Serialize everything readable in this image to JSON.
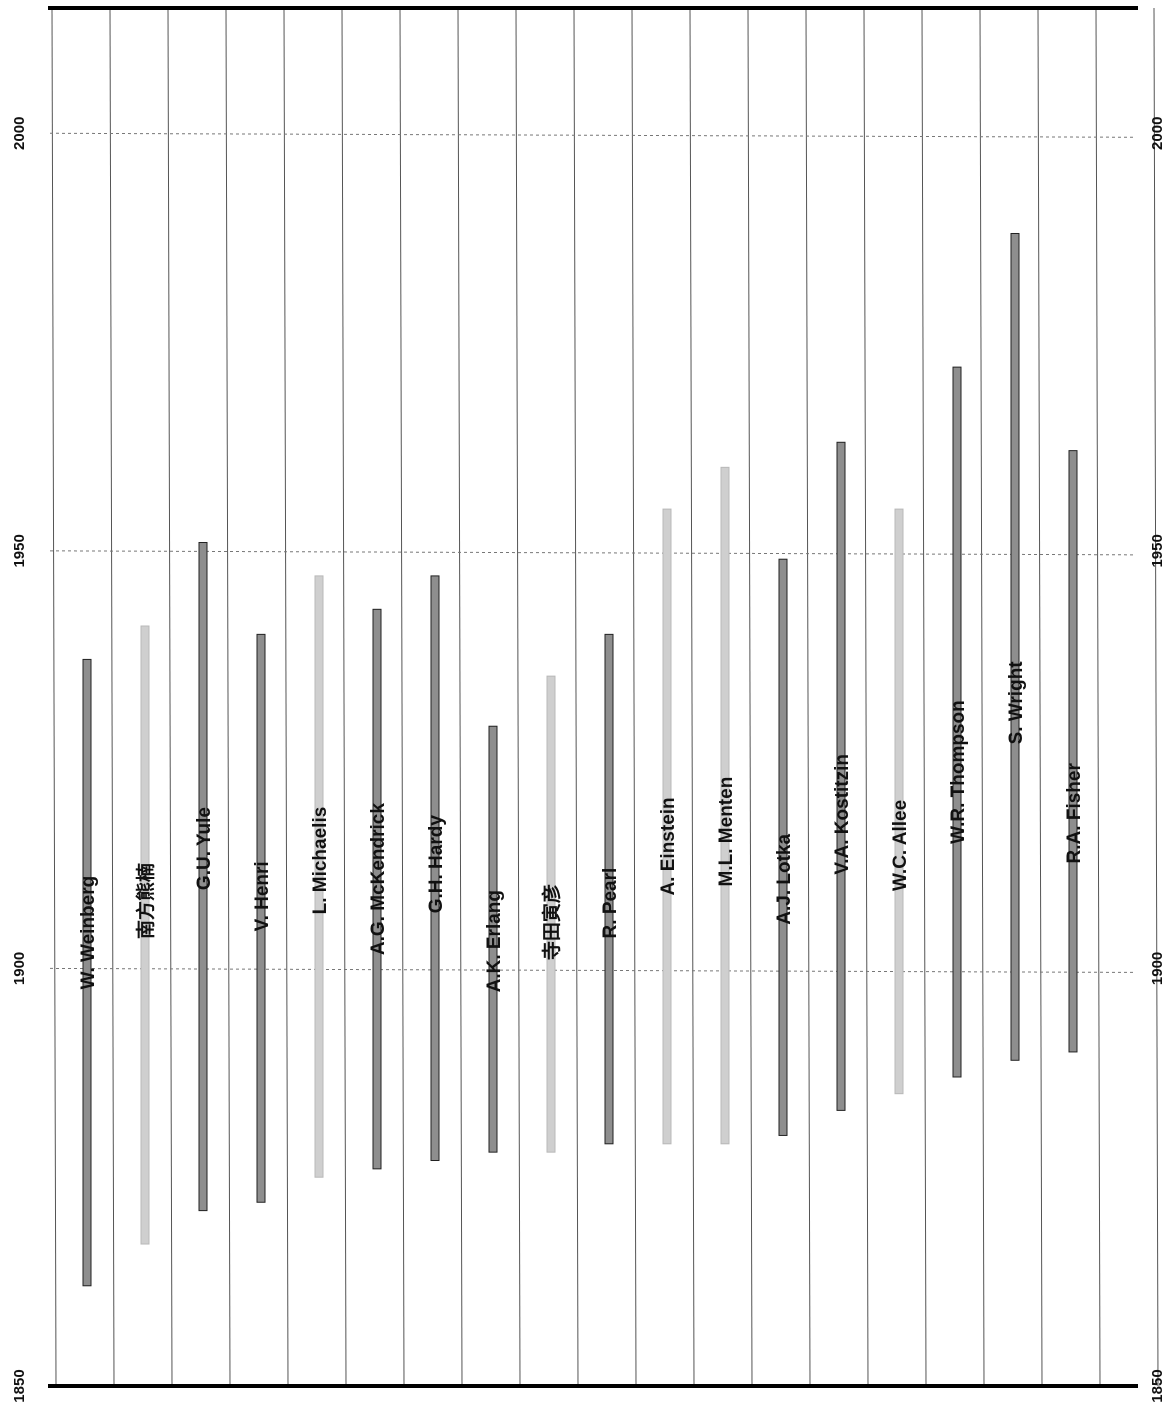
{
  "chart_data": {
    "type": "bar",
    "orientation": "horizontal-floating-range",
    "axis": {
      "min": 1850,
      "max": 2015,
      "ticks": [
        1850,
        1900,
        1950,
        2000
      ]
    },
    "gridlines": true,
    "colors": {
      "dark": "#8e8e8e",
      "light": "#cfcfcf",
      "border": "#222222"
    },
    "people": [
      {
        "name": "W. Weinberg",
        "birth": 1862,
        "death": 1937,
        "shade": "dark"
      },
      {
        "name": "南方熊楠",
        "birth": 1867,
        "death": 1941,
        "shade": "light"
      },
      {
        "name": "G.U. Yule",
        "birth": 1871,
        "death": 1951,
        "shade": "dark"
      },
      {
        "name": "V. Henri",
        "birth": 1872,
        "death": 1940,
        "shade": "dark"
      },
      {
        "name": "L. Michaelis",
        "birth": 1875,
        "death": 1947,
        "shade": "light"
      },
      {
        "name": "A.G. McKendrick",
        "birth": 1876,
        "death": 1943,
        "shade": "dark"
      },
      {
        "name": "G.H. Hardy",
        "birth": 1877,
        "death": 1947,
        "shade": "dark"
      },
      {
        "name": "A.K. Erlang",
        "birth": 1878,
        "death": 1929,
        "shade": "dark"
      },
      {
        "name": "寺田寅彦",
        "birth": 1878,
        "death": 1935,
        "shade": "light"
      },
      {
        "name": "R. Pearl",
        "birth": 1879,
        "death": 1940,
        "shade": "dark"
      },
      {
        "name": "A. Einstein",
        "birth": 1879,
        "death": 1955,
        "shade": "light"
      },
      {
        "name": "M.L. Menten",
        "birth": 1879,
        "death": 1960,
        "shade": "light"
      },
      {
        "name": "A.J. Lotka",
        "birth": 1880,
        "death": 1949,
        "shade": "dark"
      },
      {
        "name": "V.A. Kostitzin",
        "birth": 1883,
        "death": 1963,
        "shade": "dark"
      },
      {
        "name": "W.C. Allee",
        "birth": 1885,
        "death": 1955,
        "shade": "light"
      },
      {
        "name": "W.R. Thompson",
        "birth": 1887,
        "death": 1972,
        "shade": "dark"
      },
      {
        "name": "S. Wright",
        "birth": 1889,
        "death": 1988,
        "shade": "dark"
      },
      {
        "name": "R.A. Fisher",
        "birth": 1890,
        "death": 1962,
        "shade": "dark"
      }
    ]
  }
}
